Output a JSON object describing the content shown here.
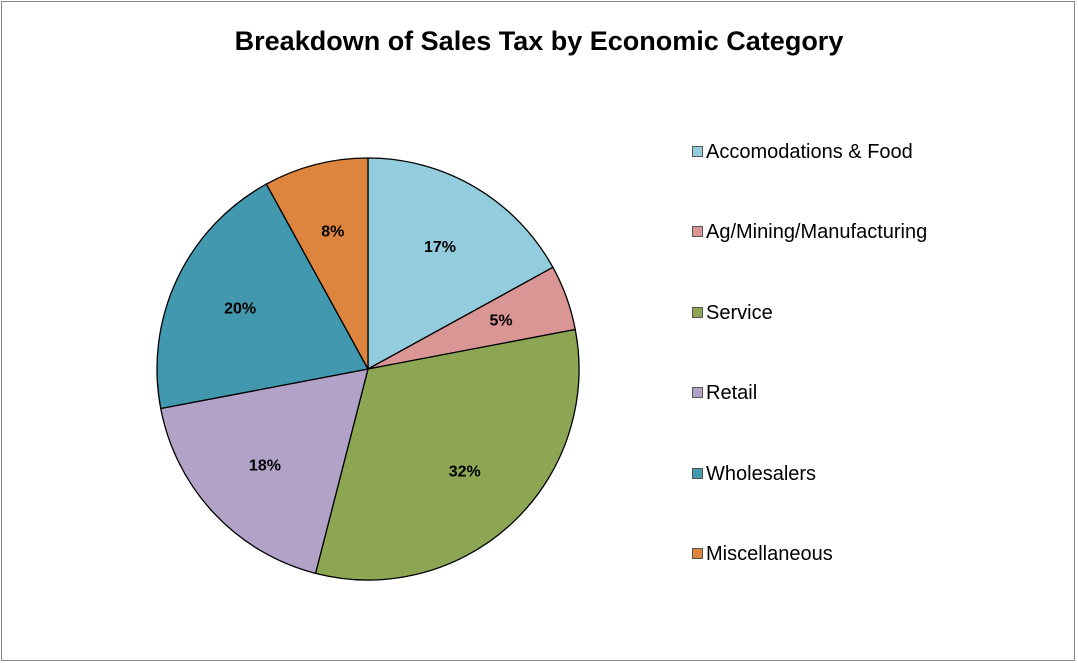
{
  "chart_data": {
    "type": "pie",
    "title": "Breakdown of Sales Tax by Economic Category",
    "legend_position": "right",
    "categories": [
      "Accomodations & Food",
      "Ag/Mining/Manufacturing",
      "Service",
      "Retail",
      "Wholesalers",
      "Miscellaneous"
    ],
    "values": [
      17,
      5,
      32,
      18,
      20,
      8
    ],
    "data_labels": [
      "17%",
      "5%",
      "32%",
      "18%",
      "20%",
      "8%"
    ],
    "colors": [
      "#93CDDD",
      "#D99694",
      "#8CA654",
      "#B3A2C7",
      "#4198AF",
      "#DD843E"
    ]
  }
}
